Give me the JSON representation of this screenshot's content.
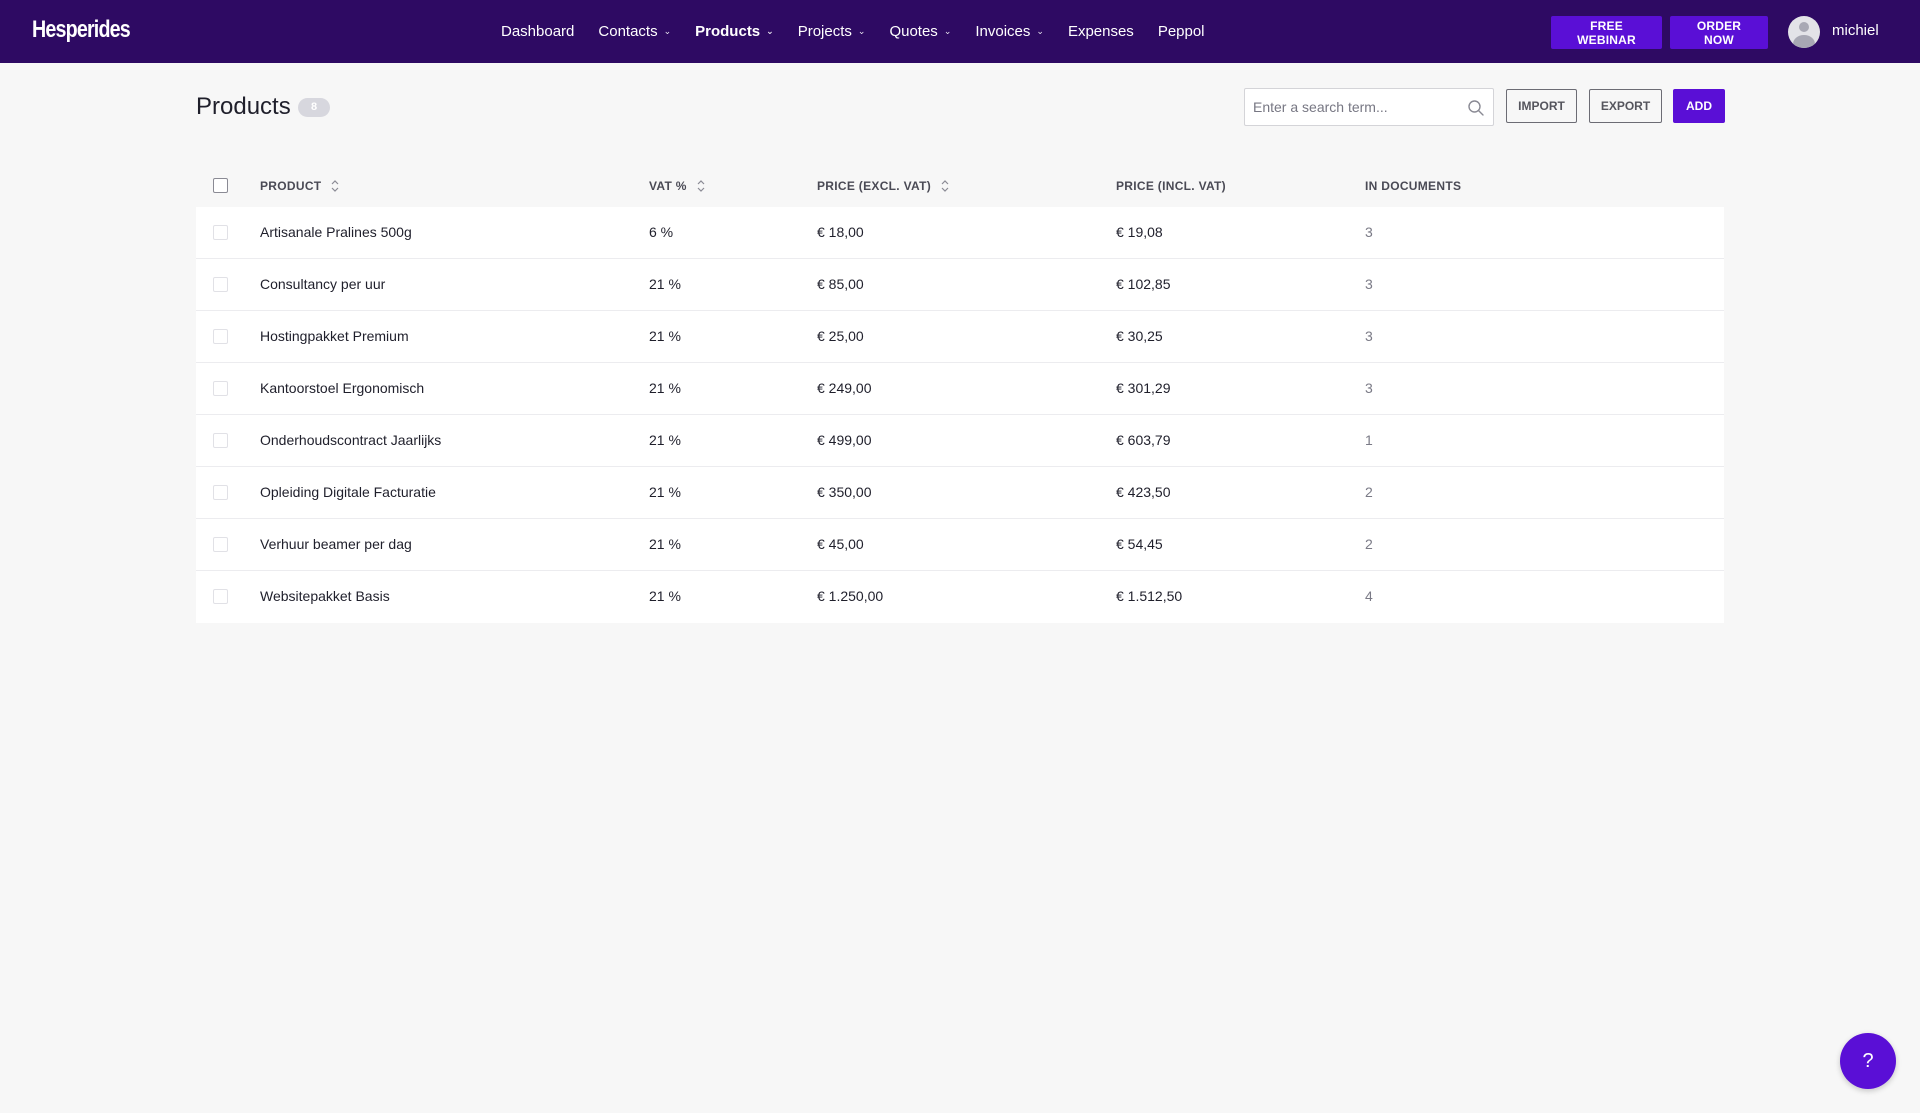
{
  "brand": {
    "logo_text": "Hesperides",
    "primary_color": "#5a0fd6",
    "topbar_color": "#2e0a63"
  },
  "nav": {
    "items": [
      {
        "label": "Dashboard",
        "dropdown": false,
        "active": false
      },
      {
        "label": "Contacts",
        "dropdown": true,
        "active": false
      },
      {
        "label": "Products",
        "dropdown": true,
        "active": true
      },
      {
        "label": "Projects",
        "dropdown": true,
        "active": false
      },
      {
        "label": "Quotes",
        "dropdown": true,
        "active": false
      },
      {
        "label": "Invoices",
        "dropdown": true,
        "active": false
      },
      {
        "label": "Expenses",
        "dropdown": false,
        "active": false
      },
      {
        "label": "Peppol",
        "dropdown": false,
        "active": false
      }
    ],
    "webinar_label": "FREE WEBINAR",
    "order_label": "ORDER NOW",
    "username": "michiel"
  },
  "page": {
    "title": "Products",
    "count": "8",
    "search_placeholder": "Enter a search term...",
    "import_label": "IMPORT",
    "export_label": "EXPORT",
    "add_label": "ADD"
  },
  "table": {
    "headers": {
      "product": "PRODUCT",
      "vat": "VAT %",
      "price_excl": "PRICE (EXCL. VAT)",
      "price_incl": "PRICE (INCL. VAT)",
      "in_documents": "IN DOCUMENTS"
    },
    "rows": [
      {
        "product": "Artisanale Pralines 500g",
        "vat": "6 %",
        "price_excl": "€ 18,00",
        "price_incl": "€ 19,08",
        "in_documents": "3"
      },
      {
        "product": "Consultancy per uur",
        "vat": "21 %",
        "price_excl": "€ 85,00",
        "price_incl": "€ 102,85",
        "in_documents": "3"
      },
      {
        "product": "Hostingpakket Premium",
        "vat": "21 %",
        "price_excl": "€ 25,00",
        "price_incl": "€ 30,25",
        "in_documents": "3"
      },
      {
        "product": "Kantoorstoel Ergonomisch",
        "vat": "21 %",
        "price_excl": "€ 249,00",
        "price_incl": "€ 301,29",
        "in_documents": "3"
      },
      {
        "product": "Onderhoudscontract Jaarlijks",
        "vat": "21 %",
        "price_excl": "€ 499,00",
        "price_incl": "€ 603,79",
        "in_documents": "1"
      },
      {
        "product": "Opleiding Digitale Facturatie",
        "vat": "21 %",
        "price_excl": "€ 350,00",
        "price_incl": "€ 423,50",
        "in_documents": "2"
      },
      {
        "product": "Verhuur beamer per dag",
        "vat": "21 %",
        "price_excl": "€ 45,00",
        "price_incl": "€ 54,45",
        "in_documents": "2"
      },
      {
        "product": "Websitepakket Basis",
        "vat": "21 %",
        "price_excl": "€ 1.250,00",
        "price_incl": "€ 1.512,50",
        "in_documents": "4"
      }
    ]
  },
  "help": {
    "label": "?"
  },
  "icons": {
    "search": "search-icon",
    "sort": "sort-icon",
    "chevron": "chevron-down-icon",
    "avatar": "user-avatar-icon",
    "help": "help-icon"
  }
}
